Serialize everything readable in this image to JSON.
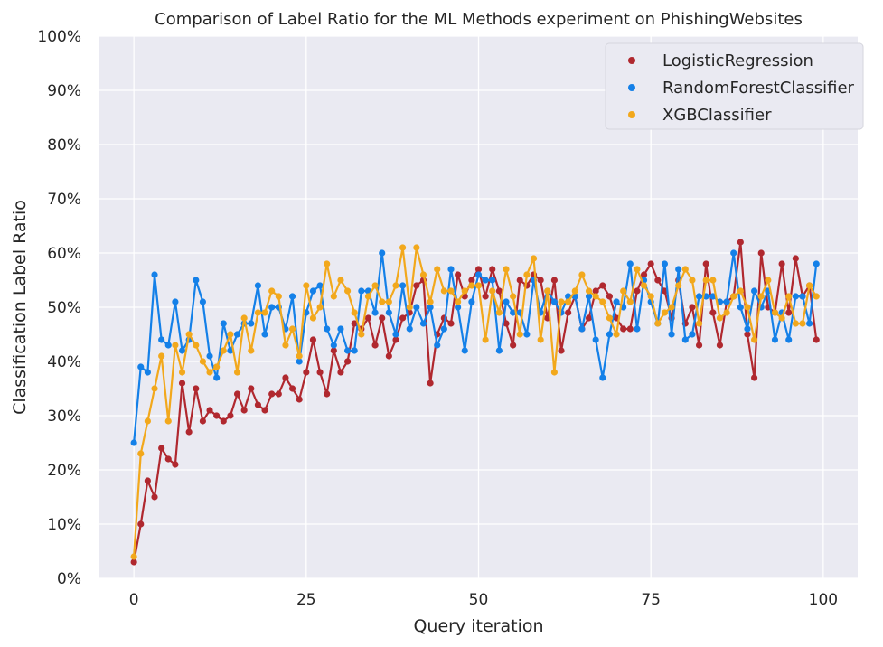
{
  "chart_data": {
    "type": "line",
    "title": "Comparison of Label Ratio for the ML Methods experiment on PhishingWebsites",
    "xlabel": "Query iteration",
    "ylabel": "Classification Label Ratio",
    "xlim": [
      -5,
      105
    ],
    "ylim": [
      0,
      100
    ],
    "xticks": [
      0,
      25,
      50,
      75,
      100
    ],
    "yticks": [
      0,
      10,
      20,
      30,
      40,
      50,
      60,
      70,
      80,
      90,
      100
    ],
    "xtick_labels": [
      "0",
      "25",
      "50",
      "75",
      "100"
    ],
    "ytick_labels": [
      "0%",
      "10%",
      "20%",
      "30%",
      "40%",
      "50%",
      "60%",
      "70%",
      "80%",
      "90%",
      "100%"
    ],
    "grid": true,
    "legend_position": "top-right",
    "background": "#eaeaf2",
    "x_start": 0,
    "series": [
      {
        "name": "LogisticRegression",
        "color": "#b0282f",
        "values": [
          3,
          10,
          18,
          15,
          24,
          22,
          21,
          36,
          27,
          35,
          29,
          31,
          30,
          29,
          30,
          34,
          31,
          35,
          32,
          31,
          34,
          34,
          37,
          35,
          33,
          38,
          44,
          38,
          34,
          42,
          38,
          40,
          47,
          46,
          48,
          43,
          48,
          41,
          44,
          48,
          49,
          54,
          55,
          36,
          45,
          48,
          47,
          56,
          52,
          55,
          57,
          52,
          57,
          53,
          47,
          43,
          55,
          54,
          56,
          55,
          48,
          55,
          42,
          49,
          52,
          46,
          48,
          53,
          54,
          52,
          48,
          46,
          46,
          53,
          56,
          58,
          55,
          53,
          48,
          55,
          47,
          50,
          43,
          58,
          49,
          43,
          51,
          52,
          62,
          45,
          37,
          60,
          50,
          49,
          58,
          49,
          59,
          52,
          54,
          44
        ]
      },
      {
        "name": "RandomForestClassifier",
        "color": "#1480e8",
        "values": [
          25,
          39,
          38,
          56,
          44,
          43,
          51,
          42,
          44,
          55,
          51,
          41,
          37,
          47,
          42,
          45,
          47,
          47,
          54,
          45,
          50,
          50,
          46,
          52,
          40,
          49,
          53,
          54,
          46,
          43,
          46,
          42,
          42,
          53,
          53,
          49,
          60,
          49,
          45,
          54,
          46,
          50,
          47,
          50,
          43,
          46,
          57,
          50,
          42,
          51,
          56,
          55,
          55,
          42,
          51,
          49,
          49,
          45,
          55,
          49,
          53,
          51,
          49,
          52,
          52,
          46,
          52,
          44,
          37,
          45,
          51,
          50,
          58,
          46,
          55,
          51,
          47,
          58,
          45,
          57,
          44,
          45,
          52,
          52,
          52,
          51,
          51,
          60,
          50,
          46,
          53,
          50,
          53,
          44,
          49,
          44,
          52,
          52,
          47,
          58
        ]
      },
      {
        "name": "XGBClassifier",
        "color": "#f2a81c",
        "values": [
          4,
          23,
          29,
          35,
          41,
          29,
          43,
          38,
          45,
          43,
          40,
          38,
          39,
          42,
          45,
          38,
          48,
          42,
          49,
          49,
          53,
          52,
          43,
          46,
          41,
          54,
          48,
          50,
          58,
          52,
          55,
          53,
          49,
          45,
          52,
          54,
          51,
          51,
          54,
          61,
          50,
          61,
          56,
          51,
          57,
          53,
          53,
          51,
          53,
          54,
          54,
          44,
          53,
          49,
          57,
          52,
          45,
          56,
          59,
          44,
          53,
          38,
          51,
          51,
          53,
          56,
          53,
          52,
          51,
          48,
          45,
          53,
          51,
          57,
          54,
          52,
          47,
          49,
          50,
          54,
          57,
          55,
          47,
          55,
          55,
          48,
          49,
          52,
          53,
          50,
          44,
          52,
          55,
          49,
          48,
          52,
          47,
          47,
          54,
          52
        ]
      }
    ]
  }
}
